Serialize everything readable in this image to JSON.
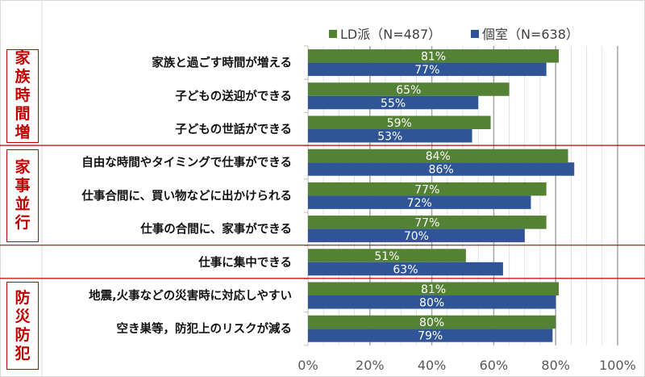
{
  "chart_data": {
    "type": "bar",
    "orientation": "horizontal",
    "categories": [
      "家族と過ごす時間が増える",
      "子どもの送迎ができる",
      "子どもの世話ができる",
      "自由な時間やタイミングで仕事ができる",
      "仕事合間に、買い物などに出かけられる",
      "仕事の合間に、家事ができる",
      "仕事に集中できる",
      "地震,火事などの災害時に対応しやすい",
      "空き巣等，防犯上のリスクが減る"
    ],
    "groups": [
      {
        "label": "家族時間増",
        "rows": [
          0,
          1,
          2
        ]
      },
      {
        "label": "家事並行",
        "rows": [
          3,
          4,
          5
        ]
      },
      {
        "label": "",
        "rows": [
          6
        ]
      },
      {
        "label": "防災防犯",
        "rows": [
          7,
          8
        ]
      }
    ],
    "series": [
      {
        "name": "LD派（N=487）",
        "color": "#548235",
        "values": [
          81,
          65,
          59,
          84,
          77,
          77,
          51,
          81,
          80
        ]
      },
      {
        "name": "個室（N=638）",
        "color": "#2f5597",
        "values": [
          77,
          55,
          53,
          86,
          72,
          70,
          63,
          80,
          79
        ]
      }
    ],
    "xlim": [
      0,
      100
    ],
    "xticks": [
      "0%",
      "20%",
      "40%",
      "60%",
      "80%",
      "100%"
    ],
    "legend": "top",
    "grid": true,
    "accent": "#c00000"
  }
}
